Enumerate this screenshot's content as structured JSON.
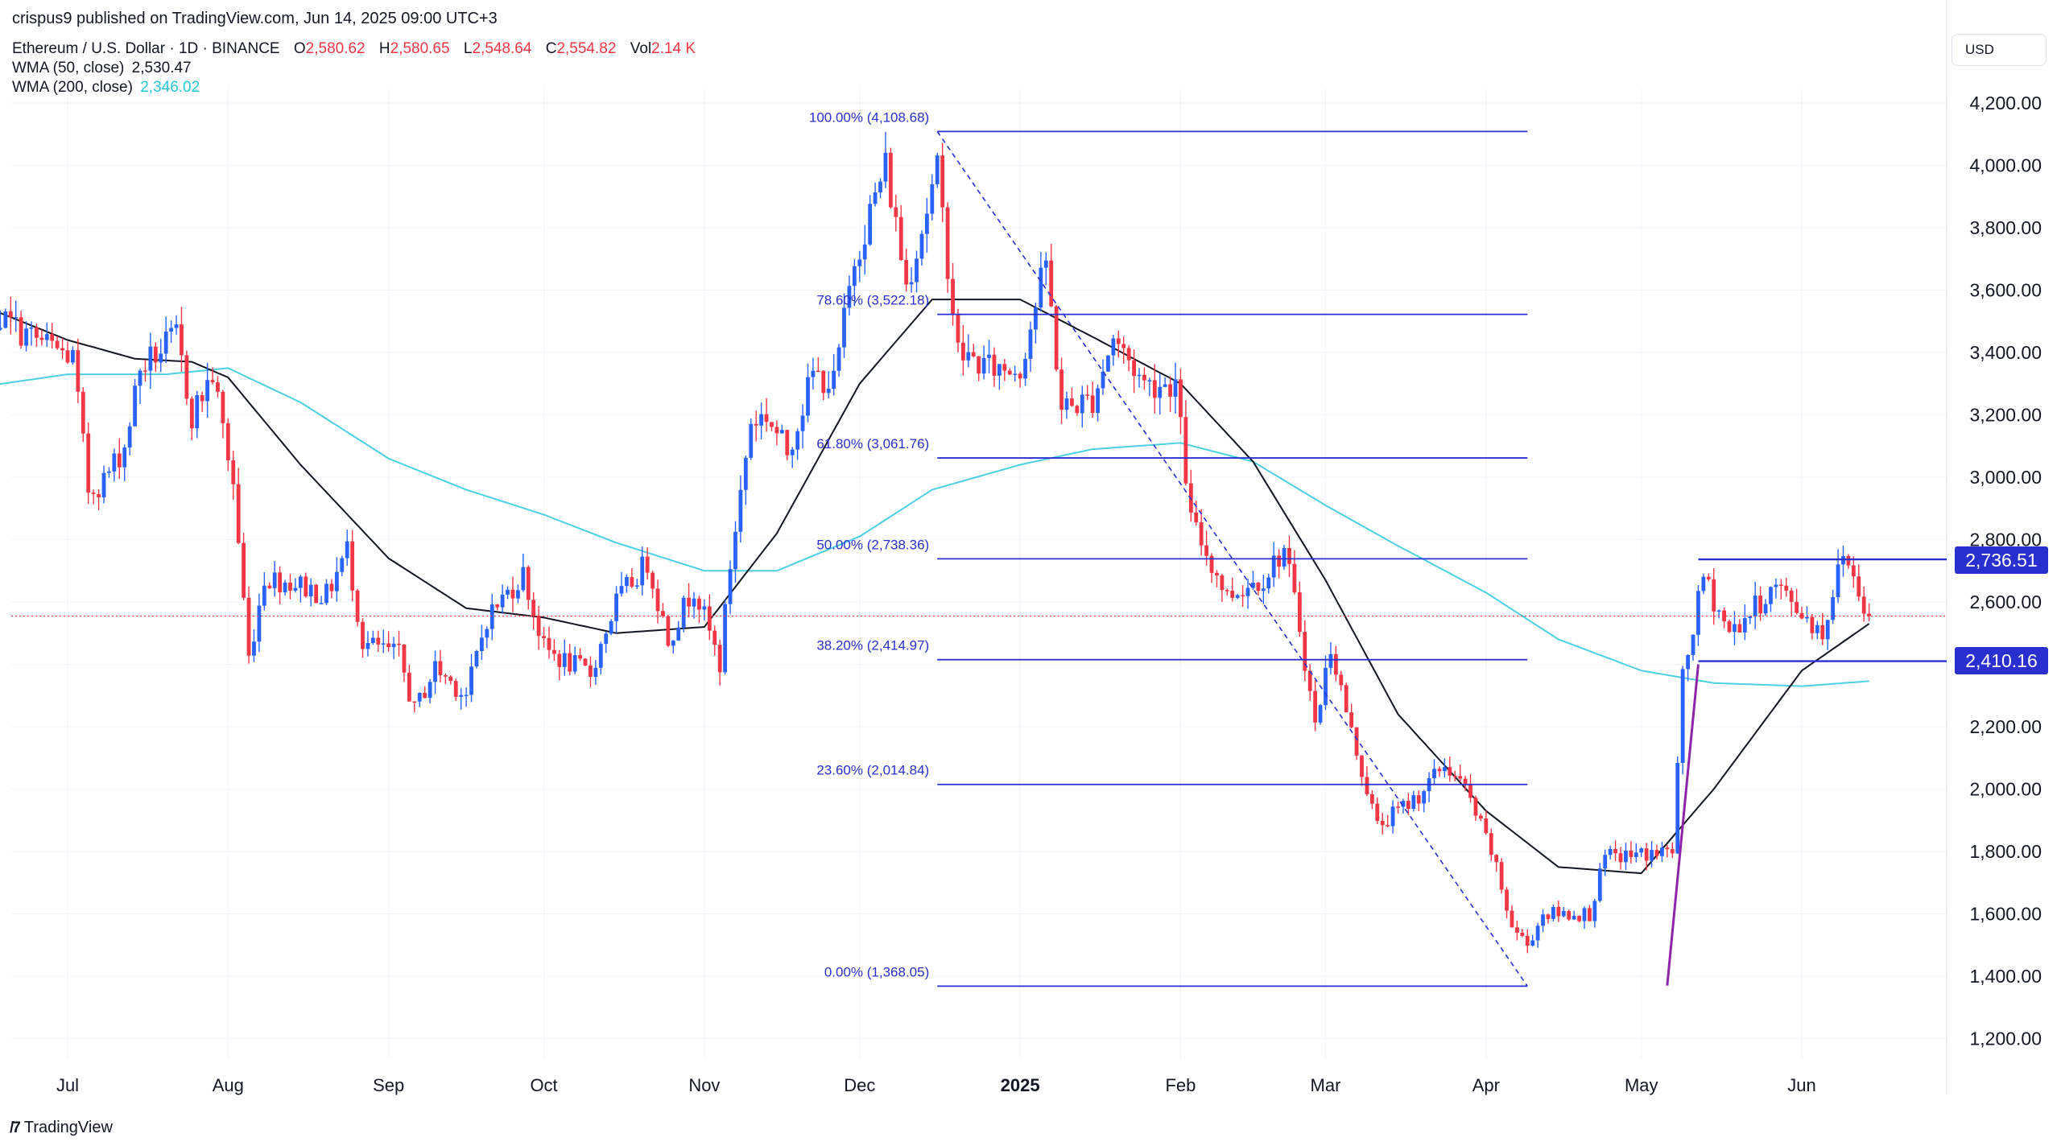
{
  "header": {
    "published": "crispus9 published on TradingView.com, Jun 14, 2025 09:00 UTC+3",
    "symbol": "Ethereum / U.S. Dollar · 1D · BINANCE",
    "ohlc": {
      "o_label": "O",
      "o": "2,580.62",
      "h_label": "H",
      "h": "2,580.65",
      "l_label": "L",
      "l": "2,548.64",
      "c_label": "C",
      "c": "2,554.82",
      "vol_label": "Vol",
      "vol": "2.14 K"
    },
    "wma50": {
      "label": "WMA (50, close)",
      "value": "2,530.47"
    },
    "wma200": {
      "label": "WMA (200, close)",
      "value": "2,346.02"
    }
  },
  "currency": "USD",
  "brand": "TradingView",
  "colors": {
    "up": "#2962ff",
    "down": "#f23645",
    "wma50": "#131722",
    "wma200": "#4dd0e1",
    "fib": "#2a2fcf",
    "trend": "#8e24aa",
    "last_price": "#f23645",
    "levels": "#2a2fcf"
  },
  "chart_data": {
    "type": "candlestick",
    "symbol": "ETHUSD",
    "exchange": "BINANCE",
    "interval": "1D",
    "y_axis": {
      "min": 1150,
      "max": 4300,
      "ticks": [
        "4,200.00",
        "4,000.00",
        "3,800.00",
        "3,600.00",
        "3,400.00",
        "3,200.00",
        "3,000.00",
        "2,800.00",
        "2,600.00",
        "2,400.00",
        "2,200.00",
        "2,000.00",
        "1,800.00",
        "1,600.00",
        "1,400.00",
        "1,200.00"
      ],
      "tick_values": [
        4200,
        4000,
        3800,
        3600,
        3400,
        3200,
        3000,
        2800,
        2600,
        2400,
        2200,
        2000,
        1800,
        1600,
        1400,
        1200
      ]
    },
    "x_axis": {
      "ticks": [
        {
          "label": "Jul",
          "date": "2024-07-01",
          "bold": false
        },
        {
          "label": "Aug",
          "date": "2024-08-01",
          "bold": false
        },
        {
          "label": "Sep",
          "date": "2024-09-01",
          "bold": false
        },
        {
          "label": "Oct",
          "date": "2024-10-01",
          "bold": false
        },
        {
          "label": "Nov",
          "date": "2024-11-01",
          "bold": false
        },
        {
          "label": "Dec",
          "date": "2024-12-01",
          "bold": false
        },
        {
          "label": "2025",
          "date": "2025-01-01",
          "bold": true
        },
        {
          "label": "Feb",
          "date": "2025-02-01",
          "bold": false
        },
        {
          "label": "Mar",
          "date": "2025-03-01",
          "bold": false
        },
        {
          "label": "Apr",
          "date": "2025-04-01",
          "bold": false
        },
        {
          "label": "May",
          "date": "2025-05-01",
          "bold": false
        },
        {
          "label": "Jun",
          "date": "2025-06-01",
          "bold": false
        }
      ]
    },
    "date_range": [
      "2024-06-10",
      "2025-06-14"
    ],
    "close_anchors": [
      [
        "2024-06-10",
        3670
      ],
      [
        "2024-06-17",
        3520
      ],
      [
        "2024-06-24",
        3450
      ],
      [
        "2024-07-02",
        3380
      ],
      [
        "2024-07-05",
        2960
      ],
      [
        "2024-07-08",
        2990
      ],
      [
        "2024-07-12",
        3100
      ],
      [
        "2024-07-15",
        3350
      ],
      [
        "2024-07-22",
        3450
      ],
      [
        "2024-07-25",
        3200
      ],
      [
        "2024-07-29",
        3330
      ],
      [
        "2024-08-02",
        2980
      ],
      [
        "2024-08-05",
        2420
      ],
      [
        "2024-08-08",
        2680
      ],
      [
        "2024-08-14",
        2660
      ],
      [
        "2024-08-20",
        2620
      ],
      [
        "2024-08-24",
        2770
      ],
      [
        "2024-08-27",
        2470
      ],
      [
        "2024-09-03",
        2430
      ],
      [
        "2024-09-06",
        2250
      ],
      [
        "2024-09-10",
        2390
      ],
      [
        "2024-09-16",
        2300
      ],
      [
        "2024-09-20",
        2550
      ],
      [
        "2024-09-27",
        2690
      ],
      [
        "2024-10-01",
        2450
      ],
      [
        "2024-10-05",
        2410
      ],
      [
        "2024-10-10",
        2370
      ],
      [
        "2024-10-15",
        2600
      ],
      [
        "2024-10-21",
        2730
      ],
      [
        "2024-10-25",
        2480
      ],
      [
        "2024-10-30",
        2650
      ],
      [
        "2024-11-04",
        2400
      ],
      [
        "2024-11-06",
        2720
      ],
      [
        "2024-11-10",
        3180
      ],
      [
        "2024-11-13",
        3200
      ],
      [
        "2024-11-17",
        3080
      ],
      [
        "2024-11-22",
        3330
      ],
      [
        "2024-11-26",
        3300
      ],
      [
        "2024-11-30",
        3700
      ],
      [
        "2024-12-06",
        4000
      ],
      [
        "2024-12-10",
        3620
      ],
      [
        "2024-12-16",
        3980
      ],
      [
        "2024-12-20",
        3400
      ],
      [
        "2024-12-26",
        3350
      ],
      [
        "2025-01-01",
        3350
      ],
      [
        "2025-01-06",
        3690
      ],
      [
        "2025-01-09",
        3220
      ],
      [
        "2025-01-15",
        3250
      ],
      [
        "2025-01-19",
        3450
      ],
      [
        "2025-01-25",
        3300
      ],
      [
        "2025-01-31",
        3300
      ],
      [
        "2025-02-03",
        2860
      ],
      [
        "2025-02-10",
        2620
      ],
      [
        "2025-02-17",
        2680
      ],
      [
        "2025-02-21",
        2770
      ],
      [
        "2025-02-24",
        2520
      ],
      [
        "2025-02-27",
        2200
      ],
      [
        "2025-03-02",
        2460
      ],
      [
        "2025-03-06",
        2180
      ],
      [
        "2025-03-11",
        1880
      ],
      [
        "2025-03-19",
        1980
      ],
      [
        "2025-03-24",
        2080
      ],
      [
        "2025-03-28",
        2000
      ],
      [
        "2025-04-02",
        1800
      ],
      [
        "2025-04-06",
        1560
      ],
      [
        "2025-04-09",
        1500
      ],
      [
        "2025-04-12",
        1600
      ],
      [
        "2025-04-21",
        1600
      ],
      [
        "2025-04-24",
        1780
      ],
      [
        "2025-05-07",
        1800
      ],
      [
        "2025-05-09",
        2350
      ],
      [
        "2025-05-13",
        2680
      ],
      [
        "2025-05-18",
        2500
      ],
      [
        "2025-05-27",
        2650
      ],
      [
        "2025-06-05",
        2500
      ],
      [
        "2025-06-09",
        2760
      ],
      [
        "2025-06-12",
        2640
      ],
      [
        "2025-06-14",
        2555
      ]
    ],
    "wma50_anchors": [
      [
        "2024-06-10",
        3580
      ],
      [
        "2024-07-01",
        3440
      ],
      [
        "2024-07-14",
        3380
      ],
      [
        "2024-07-25",
        3370
      ],
      [
        "2024-08-01",
        3320
      ],
      [
        "2024-08-15",
        3040
      ],
      [
        "2024-09-01",
        2740
      ],
      [
        "2024-09-16",
        2580
      ],
      [
        "2024-10-01",
        2550
      ],
      [
        "2024-10-15",
        2500
      ],
      [
        "2024-11-01",
        2520
      ],
      [
        "2024-11-15",
        2820
      ],
      [
        "2024-12-01",
        3300
      ],
      [
        "2024-12-15",
        3570
      ],
      [
        "2025-01-01",
        3570
      ],
      [
        "2025-01-15",
        3450
      ],
      [
        "2025-02-01",
        3300
      ],
      [
        "2025-02-15",
        3050
      ],
      [
        "2025-03-01",
        2670
      ],
      [
        "2025-03-15",
        2240
      ],
      [
        "2025-04-01",
        1930
      ],
      [
        "2025-04-15",
        1750
      ],
      [
        "2025-05-01",
        1730
      ],
      [
        "2025-05-15",
        2000
      ],
      [
        "2025-06-01",
        2380
      ],
      [
        "2025-06-14",
        2530
      ]
    ],
    "wma200_anchors": [
      [
        "2024-06-10",
        3280
      ],
      [
        "2024-07-01",
        3330
      ],
      [
        "2024-07-20",
        3330
      ],
      [
        "2024-08-01",
        3350
      ],
      [
        "2024-08-15",
        3240
      ],
      [
        "2024-09-01",
        3060
      ],
      [
        "2024-09-16",
        2960
      ],
      [
        "2024-10-01",
        2880
      ],
      [
        "2024-10-15",
        2790
      ],
      [
        "2024-11-01",
        2700
      ],
      [
        "2024-11-15",
        2700
      ],
      [
        "2024-12-01",
        2810
      ],
      [
        "2024-12-15",
        2960
      ],
      [
        "2025-01-01",
        3040
      ],
      [
        "2025-01-15",
        3090
      ],
      [
        "2025-02-01",
        3110
      ],
      [
        "2025-02-15",
        3050
      ],
      [
        "2025-03-01",
        2910
      ],
      [
        "2025-03-15",
        2780
      ],
      [
        "2025-04-01",
        2630
      ],
      [
        "2025-04-15",
        2480
      ],
      [
        "2025-05-01",
        2380
      ],
      [
        "2025-05-15",
        2340
      ],
      [
        "2025-06-01",
        2330
      ],
      [
        "2025-06-14",
        2346
      ]
    ],
    "fib_levels": [
      {
        "label": "100.00% (4,108.68)",
        "value": 4108.68
      },
      {
        "label": "78.60% (3,522.18)",
        "value": 3522.18
      },
      {
        "label": "61.80% (3,061.76)",
        "value": 3061.76
      },
      {
        "label": "50.00% (2,738.36)",
        "value": 2738.36
      },
      {
        "label": "38.20% (2,414.97)",
        "value": 2414.97
      },
      {
        "label": "23.60% (2,014.84)",
        "value": 2014.84
      },
      {
        "label": "0.00% (1,368.05)",
        "value": 1368.05
      }
    ],
    "fib_range": {
      "start": "2024-12-16",
      "end": "2025-04-09"
    },
    "fib_trend": {
      "from": [
        "2024-12-16",
        4108.68
      ],
      "to": [
        "2025-04-09",
        1368.05
      ]
    },
    "trend_line": {
      "from": [
        "2025-05-06",
        1370
      ],
      "to": [
        "2025-05-12",
        2400
      ]
    },
    "horizontal_levels": [
      {
        "label": "2,736.51",
        "value": 2736.51,
        "from": "2025-05-12"
      },
      {
        "label": "2,410.16",
        "value": 2410.16,
        "from": "2025-05-12"
      }
    ],
    "last_price": 2554.82
  }
}
